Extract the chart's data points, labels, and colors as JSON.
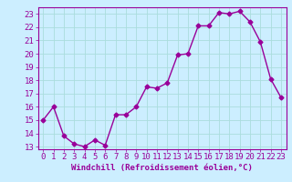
{
  "x": [
    0,
    1,
    2,
    3,
    4,
    5,
    6,
    7,
    8,
    9,
    10,
    11,
    12,
    13,
    14,
    15,
    16,
    17,
    18,
    19,
    20,
    21,
    22,
    23
  ],
  "y": [
    15,
    16,
    13.8,
    13.2,
    13,
    13.5,
    13.1,
    15.4,
    15.4,
    16,
    17.5,
    17.4,
    17.8,
    19.9,
    20,
    22.1,
    22.1,
    23.1,
    23,
    23.2,
    22.4,
    20.9,
    18.1,
    16.7
  ],
  "line_color": "#990099",
  "marker": "D",
  "marker_size": 2.5,
  "bg_color": "#cceeff",
  "grid_color": "#aadddd",
  "xlabel": "Windchill (Refroidissement éolien,°C)",
  "xlabel_color": "#990099",
  "tick_color": "#990099",
  "label_color": "#990099",
  "ylim": [
    12.8,
    23.5
  ],
  "xlim": [
    -0.5,
    23.5
  ],
  "yticks": [
    13,
    14,
    15,
    16,
    17,
    18,
    19,
    20,
    21,
    22,
    23
  ],
  "xticks": [
    0,
    1,
    2,
    3,
    4,
    5,
    6,
    7,
    8,
    9,
    10,
    11,
    12,
    13,
    14,
    15,
    16,
    17,
    18,
    19,
    20,
    21,
    22,
    23
  ],
  "linewidth": 1.0,
  "font_size": 6.5
}
